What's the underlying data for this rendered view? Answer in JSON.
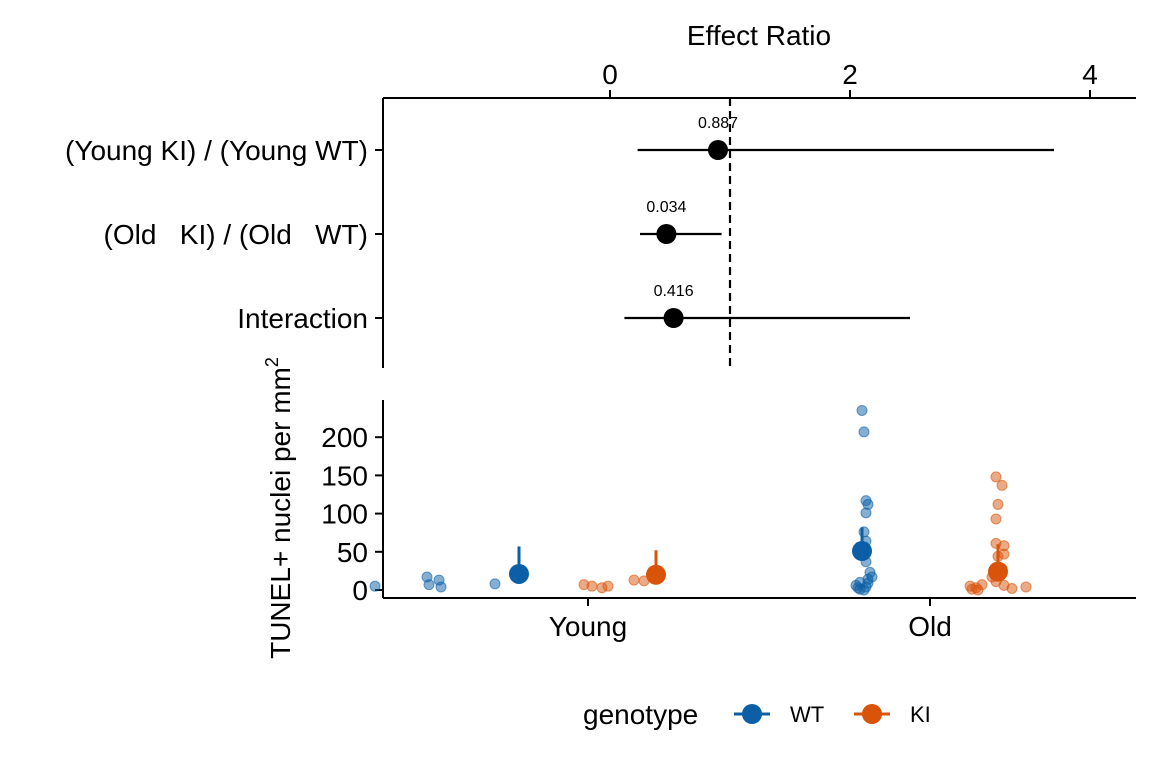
{
  "chart_data": [
    {
      "type": "forest",
      "title": "",
      "xlabel": "Effect Ratio",
      "xaxis_position": "top",
      "xlim": [
        -0.5,
        4.2
      ],
      "xticks": [
        0,
        2,
        4
      ],
      "reference_line": 1,
      "rows": [
        {
          "label": "(Young KI) / (Young WT)",
          "estimate": 0.9,
          "lower": 0.23,
          "upper": 3.7,
          "p_value": "0.887"
        },
        {
          "label": "(Old   KI) / (Old   WT)",
          "estimate": 0.47,
          "lower": 0.25,
          "upper": 0.93,
          "p_value": "0.034"
        },
        {
          "label": "Interaction",
          "estimate": 0.53,
          "lower": 0.12,
          "upper": 2.5,
          "p_value": "0.416"
        }
      ]
    },
    {
      "type": "scatter",
      "title": "",
      "ylabel": "TUNEL+ nuclei per mm²",
      "xlabel": "",
      "categories": [
        "Young",
        "Old"
      ],
      "ylim": [
        -8,
        245
      ],
      "yticks": [
        0,
        50,
        100,
        150,
        200
      ],
      "legend": {
        "title": "genotype",
        "position": "bottom",
        "entries": [
          "WT",
          "KI"
        ]
      },
      "series": [
        {
          "name": "WT",
          "color": "#0C5FA6",
          "points": [
            {
              "group": "Young",
              "values": [
                5,
                17,
                7,
                13,
                4,
                8
              ]
            },
            {
              "group": "Old",
              "values": [
                235,
                207,
                117,
                112,
                101,
                76,
                64,
                57,
                49,
                37,
                23,
                17,
                14,
                10,
                6,
                3,
                1,
                0,
                4,
                9
              ]
            }
          ],
          "summary": [
            {
              "group": "Young",
              "mean": 21,
              "upper": 57
            },
            {
              "group": "Old",
              "mean": 51,
              "upper": 82
            }
          ]
        },
        {
          "name": "KI",
          "color": "#D9530B",
          "points": [
            {
              "group": "Young",
              "values": [
                7,
                5,
                3,
                5,
                13,
                12
              ]
            },
            {
              "group": "Old",
              "values": [
                148,
                137,
                112,
                93,
                61,
                58,
                47,
                44,
                28,
                26,
                22,
                17,
                11,
                7,
                5,
                3,
                1,
                0,
                2,
                4,
                6
              ]
            }
          ],
          "summary": [
            {
              "group": "Young",
              "mean": 20,
              "upper": 52
            },
            {
              "group": "Old",
              "mean": 24,
              "upper": 60
            }
          ]
        }
      ]
    }
  ]
}
